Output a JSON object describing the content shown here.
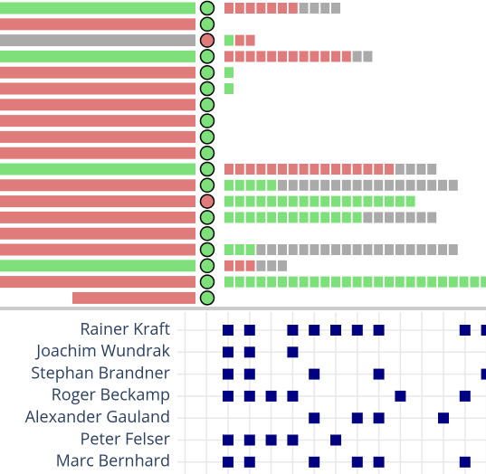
{
  "rows": [
    {
      "bar": "#7ee07a",
      "circle": "#7ee07a",
      "segments": [
        {
          "color": "#e07b7b",
          "count": 7
        },
        {
          "color": "#aaaaaa",
          "count": 4
        }
      ]
    },
    {
      "bar": "#e07b7b",
      "circle": "#7ee07a",
      "segments": []
    },
    {
      "bar": "#aaaaaa",
      "circle": "#e07b7b",
      "segments": [
        {
          "color": "#7ee07a",
          "count": 1
        },
        {
          "color": "#e07b7b",
          "count": 2
        }
      ]
    },
    {
      "bar": "#7ee07a",
      "circle": "#7ee07a",
      "segments": [
        {
          "color": "#e07b7b",
          "count": 12
        },
        {
          "color": "#aaaaaa",
          "count": 2
        }
      ]
    },
    {
      "bar": "#e07b7b",
      "circle": "#7ee07a",
      "segments": [
        {
          "color": "#7ee07a",
          "count": 1
        }
      ]
    },
    {
      "bar": "#e07b7b",
      "circle": "#7ee07a",
      "segments": [
        {
          "color": "#7ee07a",
          "count": 1
        }
      ]
    },
    {
      "bar": "#e07b7b",
      "circle": "#7ee07a",
      "segments": []
    },
    {
      "bar": "#e07b7b",
      "circle": "#7ee07a",
      "segments": []
    },
    {
      "bar": "#e07b7b",
      "circle": "#7ee07a",
      "segments": []
    },
    {
      "bar": "#e07b7b",
      "circle": "#7ee07a",
      "segments": []
    },
    {
      "bar": "#7ee07a",
      "circle": "#7ee07a",
      "segments": [
        {
          "color": "#e07b7b",
          "count": 16
        },
        {
          "color": "#aaaaaa",
          "count": 4
        }
      ]
    },
    {
      "bar": "#e07b7b",
      "circle": "#7ee07a",
      "segments": [
        {
          "color": "#7ee07a",
          "count": 5
        },
        {
          "color": "#aaaaaa",
          "count": 17
        }
      ]
    },
    {
      "bar": "#e07b7b",
      "circle": "#e07b7b",
      "segments": [
        {
          "color": "#7ee07a",
          "count": 18
        }
      ]
    },
    {
      "bar": "#e07b7b",
      "circle": "#7ee07a",
      "segments": [
        {
          "color": "#7ee07a",
          "count": 13
        },
        {
          "color": "#aaaaaa",
          "count": 7
        }
      ]
    },
    {
      "bar": "#e07b7b",
      "circle": "#7ee07a",
      "segments": []
    },
    {
      "bar": "#e07b7b",
      "circle": "#7ee07a",
      "segments": [
        {
          "color": "#7ee07a",
          "count": 3
        },
        {
          "color": "#aaaaaa",
          "count": 19
        }
      ]
    },
    {
      "bar": "#7ee07a",
      "circle": "#7ee07a",
      "segments": [
        {
          "color": "#e07b7b",
          "count": 3
        },
        {
          "color": "#aaaaaa",
          "count": 3
        }
      ]
    },
    {
      "bar": "#e07b7b",
      "circle": "#7ee07a",
      "segments": [
        {
          "color": "#7ee07a",
          "count": 25
        }
      ]
    },
    {
      "bar": "#e07b7b",
      "bar_short": true,
      "circle": "#7ee07a",
      "segments": []
    }
  ],
  "people": [
    {
      "name": "Rainer Kraft",
      "cells": [
        0,
        1,
        3,
        4,
        5,
        6,
        7,
        11,
        12
      ]
    },
    {
      "name": "Joachim Wundrak",
      "cells": [
        0,
        1,
        3
      ]
    },
    {
      "name": "Stephan Brandner",
      "cells": [
        0,
        1,
        4,
        7,
        12
      ]
    },
    {
      "name": "Roger Beckamp",
      "cells": [
        0,
        1,
        2,
        3,
        8,
        11
      ]
    },
    {
      "name": "Alexander Gauland",
      "cells": [
        4,
        6,
        7,
        10
      ]
    },
    {
      "name": "Peter Felser",
      "cells": [
        0,
        1,
        2,
        3,
        5
      ]
    },
    {
      "name": "Marc Bernhard",
      "cells": [
        0,
        1,
        4,
        6,
        7,
        11
      ]
    }
  ],
  "square_color": "#000080"
}
